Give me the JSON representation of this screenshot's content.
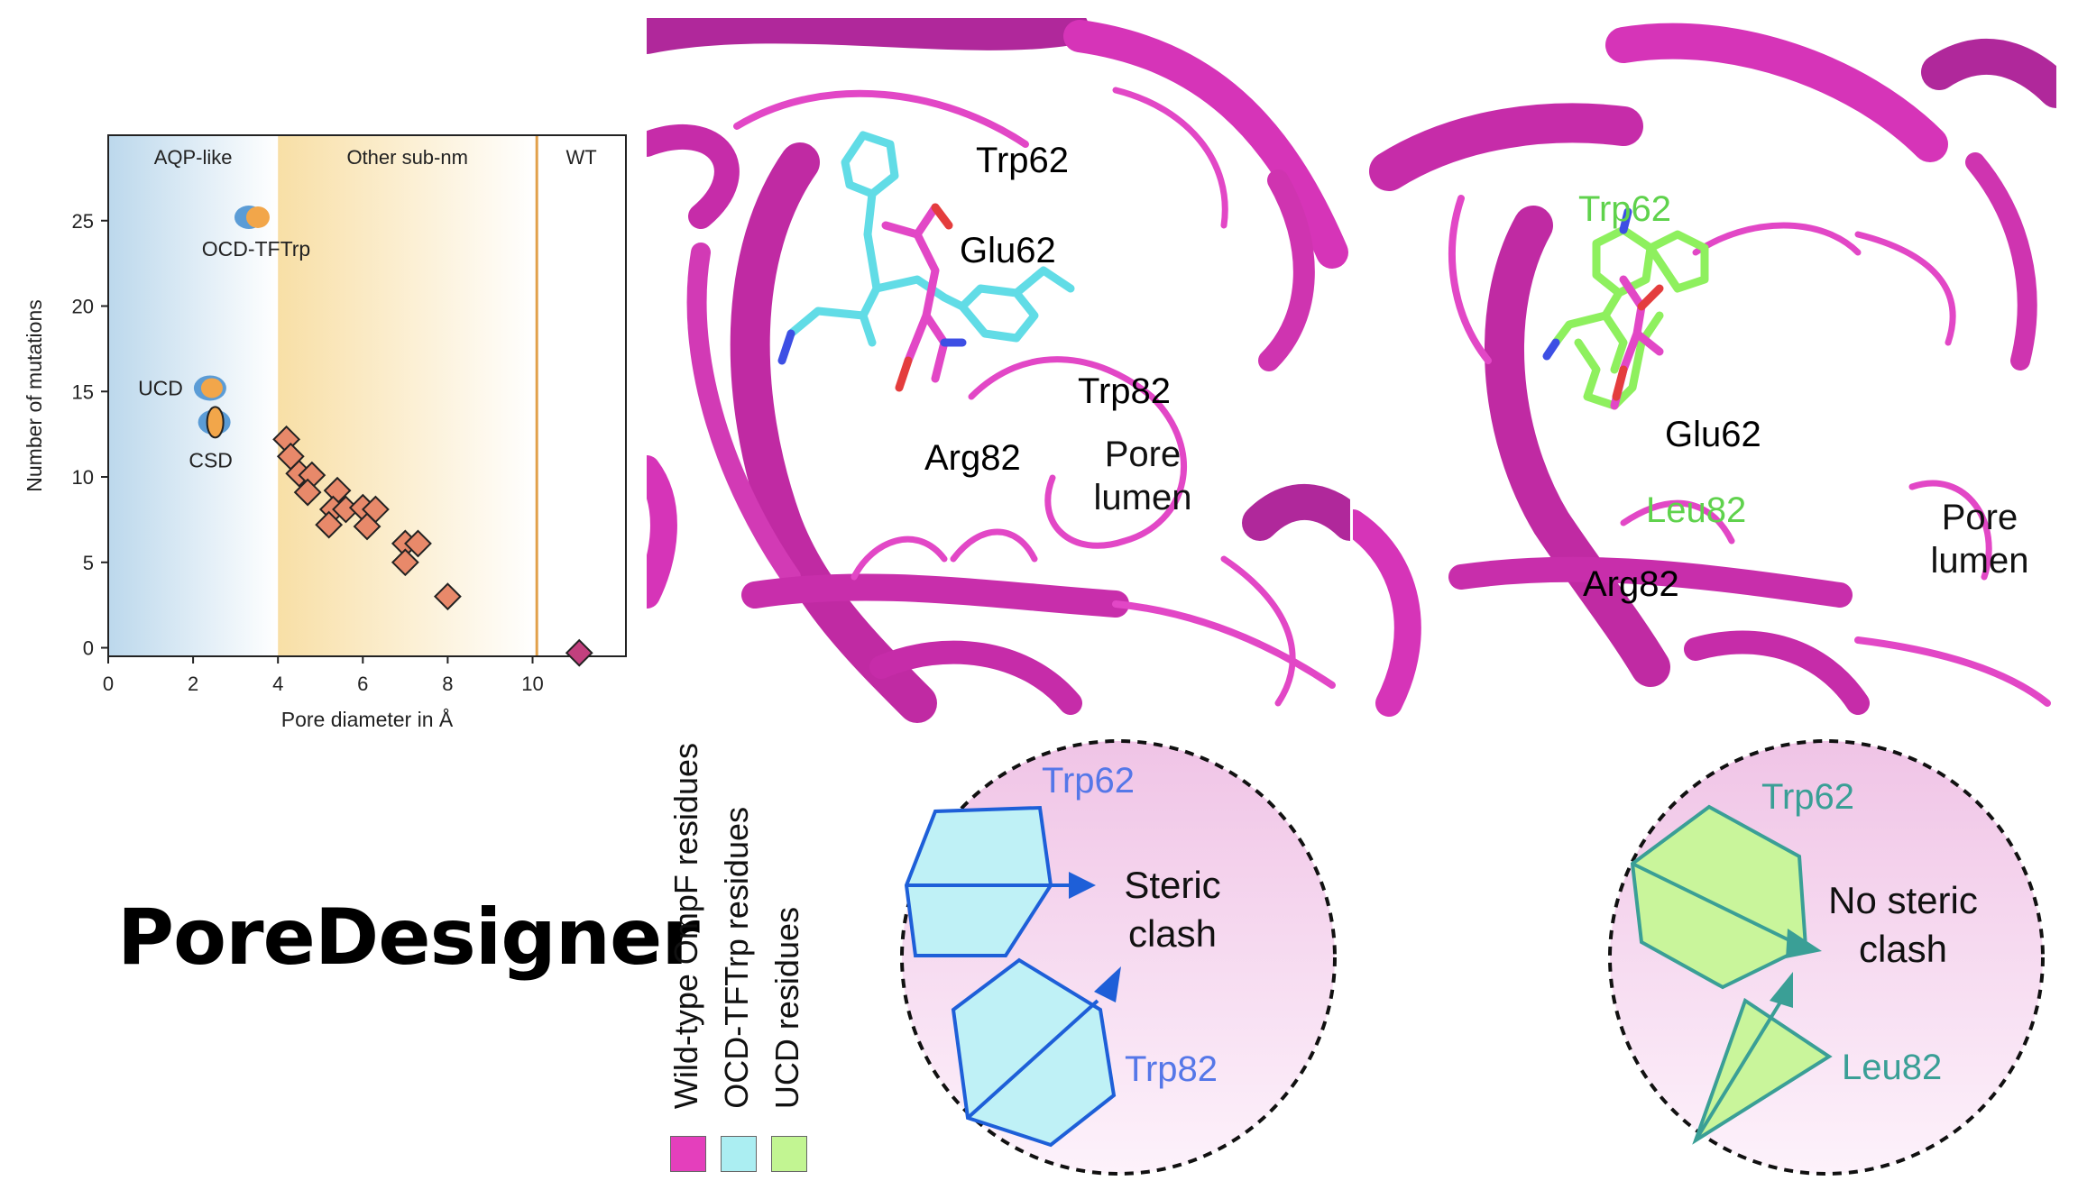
{
  "colors": {
    "wildtype": "#e43fbc",
    "ocd": "#61dce6",
    "ucd": "#8ef05e",
    "diamond": "#e8896a",
    "wt_diamond": "#c2407e",
    "vline": "#e2a04a",
    "ellipse_blue": "#5b9cd6",
    "ellipse_orange": "#f2a64a"
  },
  "chart_data": {
    "type": "scatter",
    "xlabel": "Pore diameter in Å",
    "ylabel": "Number of mutations",
    "xlim": [
      0,
      12.2
    ],
    "ylim": [
      -0.5,
      30
    ],
    "xticks": [
      0,
      2,
      4,
      6,
      8,
      10
    ],
    "yticks": [
      0,
      5,
      10,
      15,
      20,
      25
    ],
    "regions": [
      {
        "label": "AQP-like",
        "from": 0,
        "to": 4.0
      },
      {
        "label": "Other sub-nm",
        "from": 4.0,
        "to": 10.1
      },
      {
        "label": "WT",
        "from": 10.1,
        "to": 12.2
      }
    ],
    "vline_x": 10.1,
    "designs": [
      {
        "label": "OCD-TFTrp",
        "x": 3.4,
        "y": 25.2
      },
      {
        "label": "UCD",
        "x": 2.4,
        "y": 15.2
      },
      {
        "label": "CSD",
        "x": 2.5,
        "y": 13.2
      }
    ],
    "other_sub_nm": [
      {
        "x": 4.2,
        "y": 12.2
      },
      {
        "x": 4.3,
        "y": 11.2
      },
      {
        "x": 4.5,
        "y": 10.2
      },
      {
        "x": 4.8,
        "y": 10.1
      },
      {
        "x": 4.7,
        "y": 9.1
      },
      {
        "x": 5.4,
        "y": 9.2
      },
      {
        "x": 5.3,
        "y": 8.1
      },
      {
        "x": 5.6,
        "y": 8.1
      },
      {
        "x": 5.2,
        "y": 7.2
      },
      {
        "x": 6.0,
        "y": 8.2
      },
      {
        "x": 6.3,
        "y": 8.1
      },
      {
        "x": 6.1,
        "y": 7.1
      },
      {
        "x": 7.0,
        "y": 6.1
      },
      {
        "x": 7.3,
        "y": 6.1
      },
      {
        "x": 7.0,
        "y": 5.0
      },
      {
        "x": 8.0,
        "y": 3.0
      }
    ],
    "wild_type": [
      {
        "x": 11.1,
        "y": -0.3
      }
    ]
  },
  "brand": "PoreDesigner",
  "molecule_left": {
    "labels": {
      "trp62": "Trp62",
      "glu62": "Glu62",
      "trp82": "Trp82",
      "arg82": "Arg82"
    },
    "lumen": [
      "Pore",
      "lumen"
    ]
  },
  "molecule_right": {
    "labels": {
      "trp62": "Trp62",
      "glu62": "Glu62",
      "leu82": "Leu82",
      "arg82": "Arg82"
    },
    "lumen": [
      "Pore",
      "lumen"
    ]
  },
  "legend": {
    "wildtype": "Wild-type OmpF residues",
    "ocd": "OCD-TFTrp residues",
    "ucd": "UCD residues"
  },
  "clash_left": {
    "top": "Trp62",
    "bottom": "Trp82",
    "note": [
      "Steric",
      "clash"
    ]
  },
  "clash_right": {
    "top": "Trp62",
    "bottom": "Leu82",
    "note": [
      "No steric",
      "clash"
    ]
  }
}
